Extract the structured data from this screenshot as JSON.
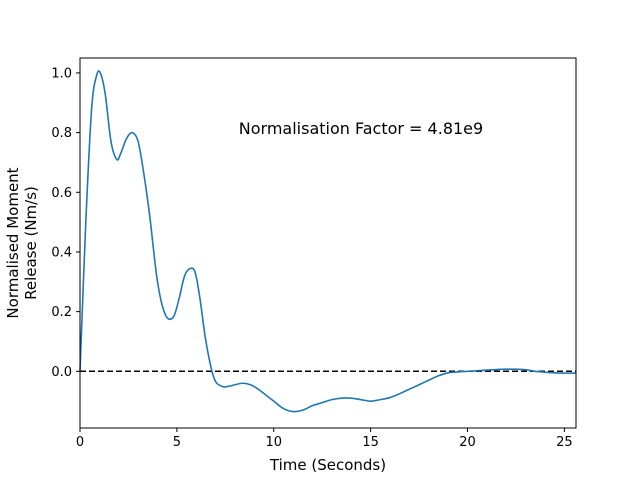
{
  "chart_data": {
    "type": "line",
    "xlabel": "Time (Seconds)",
    "ylabel_lines": [
      "Normalised Moment",
      "Release (Nm/s)"
    ],
    "annotation": "Normalisation Factor = 4.81e9",
    "xlim": [
      0,
      25.6
    ],
    "ylim": [
      -0.19,
      1.05
    ],
    "xticks": [
      0,
      5,
      10,
      15,
      20,
      25
    ],
    "xtick_labels": [
      "0",
      "5",
      "10",
      "15",
      "20",
      "25"
    ],
    "yticks": [
      0.0,
      0.2,
      0.4,
      0.6,
      0.8,
      1.0
    ],
    "ytick_labels": [
      "0.0",
      "0.2",
      "0.4",
      "0.6",
      "0.8",
      "1.0"
    ],
    "reference_line": {
      "y": 0.0,
      "style": "dashed",
      "color": "#000000"
    },
    "grid": false,
    "series": [
      {
        "color": "#1f77b4",
        "x": [
          0,
          0.3,
          0.6,
          0.85,
          1.05,
          1.3,
          1.6,
          1.9,
          2.1,
          2.4,
          2.7,
          3.0,
          3.3,
          3.6,
          4.0,
          4.4,
          4.8,
          5.1,
          5.4,
          5.7,
          5.95,
          6.2,
          6.5,
          6.9,
          7.3,
          7.7,
          8.0,
          8.4,
          8.8,
          9.2,
          9.6,
          10.0,
          10.5,
          11.0,
          11.5,
          12.0,
          12.5,
          13.0,
          13.5,
          14.0,
          14.5,
          15.0,
          15.5,
          16.0,
          16.5,
          17.0,
          17.5,
          18.0,
          18.5,
          19.0,
          19.5,
          20.0,
          20.5,
          21.0,
          21.5,
          22.0,
          22.5,
          23.0,
          23.5,
          24.0,
          24.5,
          25.0,
          25.6
        ],
        "y": [
          0.0,
          0.5,
          0.88,
          0.99,
          1.0,
          0.93,
          0.77,
          0.71,
          0.73,
          0.78,
          0.8,
          0.77,
          0.66,
          0.52,
          0.3,
          0.19,
          0.18,
          0.24,
          0.32,
          0.345,
          0.33,
          0.24,
          0.1,
          -0.02,
          -0.05,
          -0.05,
          -0.045,
          -0.04,
          -0.045,
          -0.06,
          -0.08,
          -0.1,
          -0.125,
          -0.135,
          -0.13,
          -0.115,
          -0.105,
          -0.095,
          -0.09,
          -0.09,
          -0.095,
          -0.1,
          -0.095,
          -0.088,
          -0.075,
          -0.06,
          -0.045,
          -0.03,
          -0.015,
          -0.005,
          -0.002,
          0.0,
          0.002,
          0.004,
          0.006,
          0.007,
          0.007,
          0.005,
          0.0,
          -0.003,
          -0.005,
          -0.006,
          -0.006
        ]
      }
    ]
  }
}
